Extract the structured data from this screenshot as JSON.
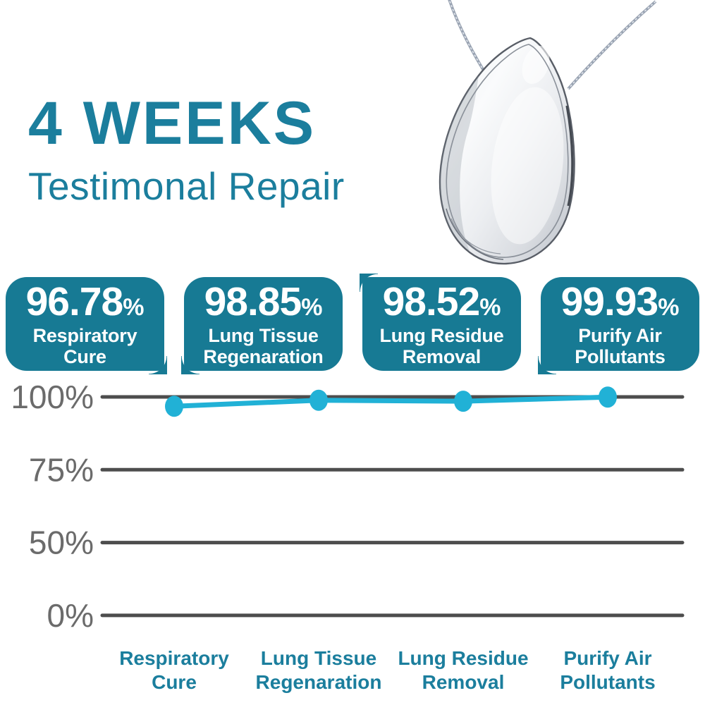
{
  "title": {
    "line1": "4 WEEKS",
    "line2": "Testimonal Repair"
  },
  "stats": [
    {
      "value": "96.78",
      "unit": "%",
      "label": "Respiratory\nCure"
    },
    {
      "value": "98.85",
      "unit": "%",
      "label": "Lung Tissue\nRegenaration"
    },
    {
      "value": "98.52",
      "unit": "%",
      "label": "Lung Residue\nRemoval"
    },
    {
      "value": "99.93",
      "unit": "%",
      "label": "Purify Air\nPollutants"
    }
  ],
  "chart_data": {
    "type": "line",
    "categories": [
      "Respiratory\nCure",
      "Lung Tissue\nRegenaration",
      "Lung Residue\nRemoval",
      "Purify Air\nPollutants"
    ],
    "values": [
      96.78,
      98.85,
      98.52,
      99.93
    ],
    "y_ticks": [
      {
        "label": "100%",
        "value": 100
      },
      {
        "label": "75%",
        "value": 75
      },
      {
        "label": "50%",
        "value": 50
      },
      {
        "label": "0%",
        "value": 0
      }
    ],
    "grid": "horizontal",
    "legend": "none",
    "line_color": "#21b1d6",
    "grid_color": "#4d4d4d",
    "tick_color": "#6b6b6b",
    "label_color": "#1b7e9d"
  },
  "colors": {
    "title_teal": "#1b7e9d",
    "badge_teal": "#177a94",
    "chart_line_cyan": "#21b1d6",
    "gridline_gray": "#4d4d4d",
    "tick_gray": "#6b6b6b",
    "pendant_silver": "#d9dce0",
    "chain_gray": "#99a3b2"
  }
}
